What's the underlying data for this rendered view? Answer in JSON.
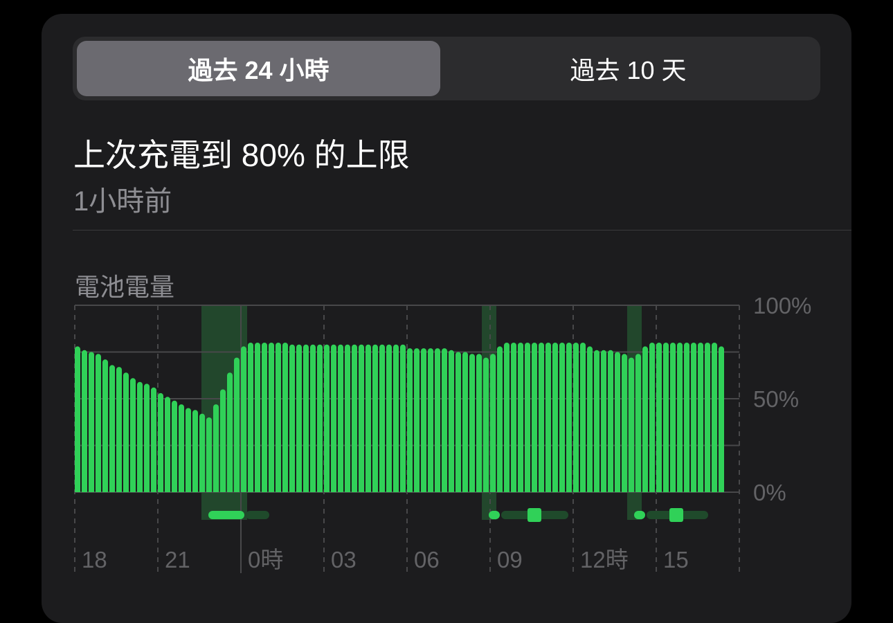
{
  "segmented_control": {
    "options": [
      "過去 24 小時",
      "過去 10 天"
    ],
    "selected": 0
  },
  "status": {
    "title": "上次充電到 80% 的上限",
    "subtitle": "1小時前"
  },
  "section_title": "電池電量",
  "colors": {
    "bar": "#30d158",
    "charging_band": "#22472c",
    "charging_pill_dark": "#1f4a2b"
  },
  "chart_data": {
    "type": "bar",
    "title": "電池電量",
    "ylim": [
      0,
      100
    ],
    "y_ticks": [
      "100%",
      "50%",
      "0%"
    ],
    "x_ticks": [
      "18",
      "21",
      "0時",
      "03",
      "06",
      "09",
      "12時",
      "15"
    ],
    "interval_minutes": 15,
    "grid": true,
    "values": [
      78,
      76,
      75,
      74,
      71,
      68,
      67,
      64,
      61,
      59,
      58,
      56,
      53,
      51,
      49,
      47,
      45,
      44,
      42,
      40,
      47,
      55,
      64,
      72,
      78,
      80,
      80,
      80,
      80,
      80,
      80,
      79,
      79,
      79,
      79,
      79,
      79,
      79,
      79,
      79,
      79,
      79,
      79,
      79,
      79,
      79,
      79,
      79,
      77,
      77,
      77,
      77,
      77,
      77,
      76,
      75,
      75,
      74,
      74,
      72,
      74,
      78,
      80,
      80,
      80,
      80,
      80,
      80,
      80,
      80,
      80,
      80,
      80,
      80,
      78,
      76,
      76,
      76,
      75,
      74,
      72,
      74,
      78,
      80,
      80,
      80,
      80,
      80,
      80,
      80,
      80,
      80,
      80,
      78
    ],
    "charging_periods": [
      [
        19,
        24
      ],
      [
        59,
        60
      ],
      [
        80,
        81
      ]
    ]
  }
}
